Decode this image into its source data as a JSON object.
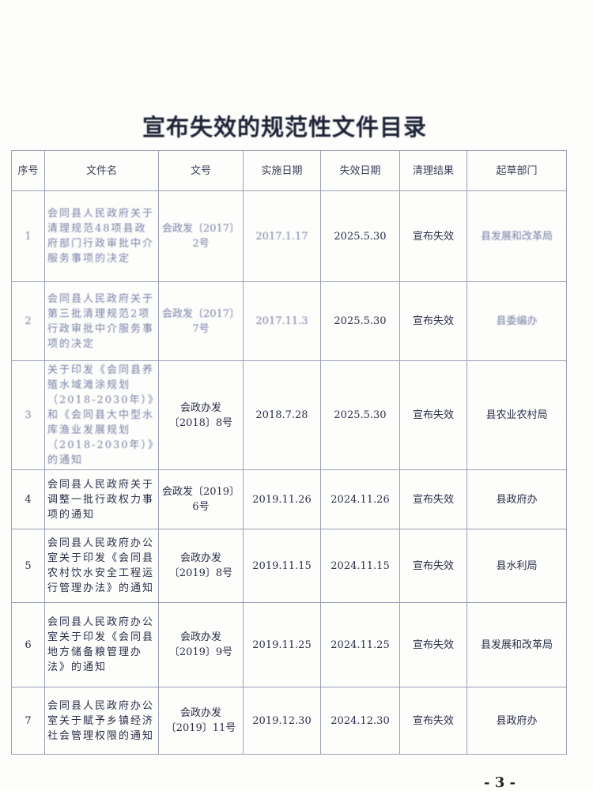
{
  "title": "宣布失效的规范性文件目录",
  "table": {
    "headers": [
      "序号",
      "文件名",
      "文号",
      "实施日期",
      "失效日期",
      "清理结果",
      "起草部门"
    ],
    "rows": [
      {
        "no": "1",
        "name": "会同县人民政府关于清理规范48项县政府部门行政审批中介服务事项的决定",
        "doc": "会政发〔2017〕2号",
        "start": "2017.1.17",
        "end": "2025.5.30",
        "result": "宣布失效",
        "dept": "县发展和改革局"
      },
      {
        "no": "2",
        "name": "会同县人民政府关于第三批清理规范2项行政审批中介服务事项的决定",
        "doc": "会政发〔2017〕7号",
        "start": "2017.11.3",
        "end": "2025.5.30",
        "result": "宣布失效",
        "dept": "县委编办"
      },
      {
        "no": "3",
        "name": "关于印发《会同县养殖水域滩涂规划（2018-2030年）》和《会同县大中型水库渔业发展规划（2018-2030年）》的通知",
        "doc": "会政办发〔2018〕8号",
        "start": "2018.7.28",
        "end": "2025.5.30",
        "result": "宣布失效",
        "dept": "县农业农村局"
      },
      {
        "no": "4",
        "name": "会同县人民政府关于调整一批行政权力事项的通知",
        "doc": "会政发〔2019〕6号",
        "start": "2019.11.26",
        "end": "2024.11.26",
        "result": "宣布失效",
        "dept": "县政府办"
      },
      {
        "no": "5",
        "name": "会同县人民政府办公室关于印发《会同县农村饮水安全工程运行管理办法》的通知",
        "doc": "会政办发〔2019〕8号",
        "start": "2019.11.15",
        "end": "2024.11.15",
        "result": "宣布失效",
        "dept": "县水利局"
      },
      {
        "no": "6",
        "name": "会同县人民政府办公室关于印发《会同县地方储备粮管理办法》的通知",
        "doc": "会政办发〔2019〕9号",
        "start": "2019.11.25",
        "end": "2024.11.25",
        "result": "宣布失效",
        "dept": "县发展和改革局"
      },
      {
        "no": "7",
        "name": "会同县人民政府办公室关于赋予乡镇经济社会管理权限的通知",
        "doc": "会政办发〔2019〕11号",
        "start": "2019.12.30",
        "end": "2024.12.30",
        "result": "宣布失效",
        "dept": "县政府办"
      }
    ]
  },
  "page_number": "- 3 -"
}
